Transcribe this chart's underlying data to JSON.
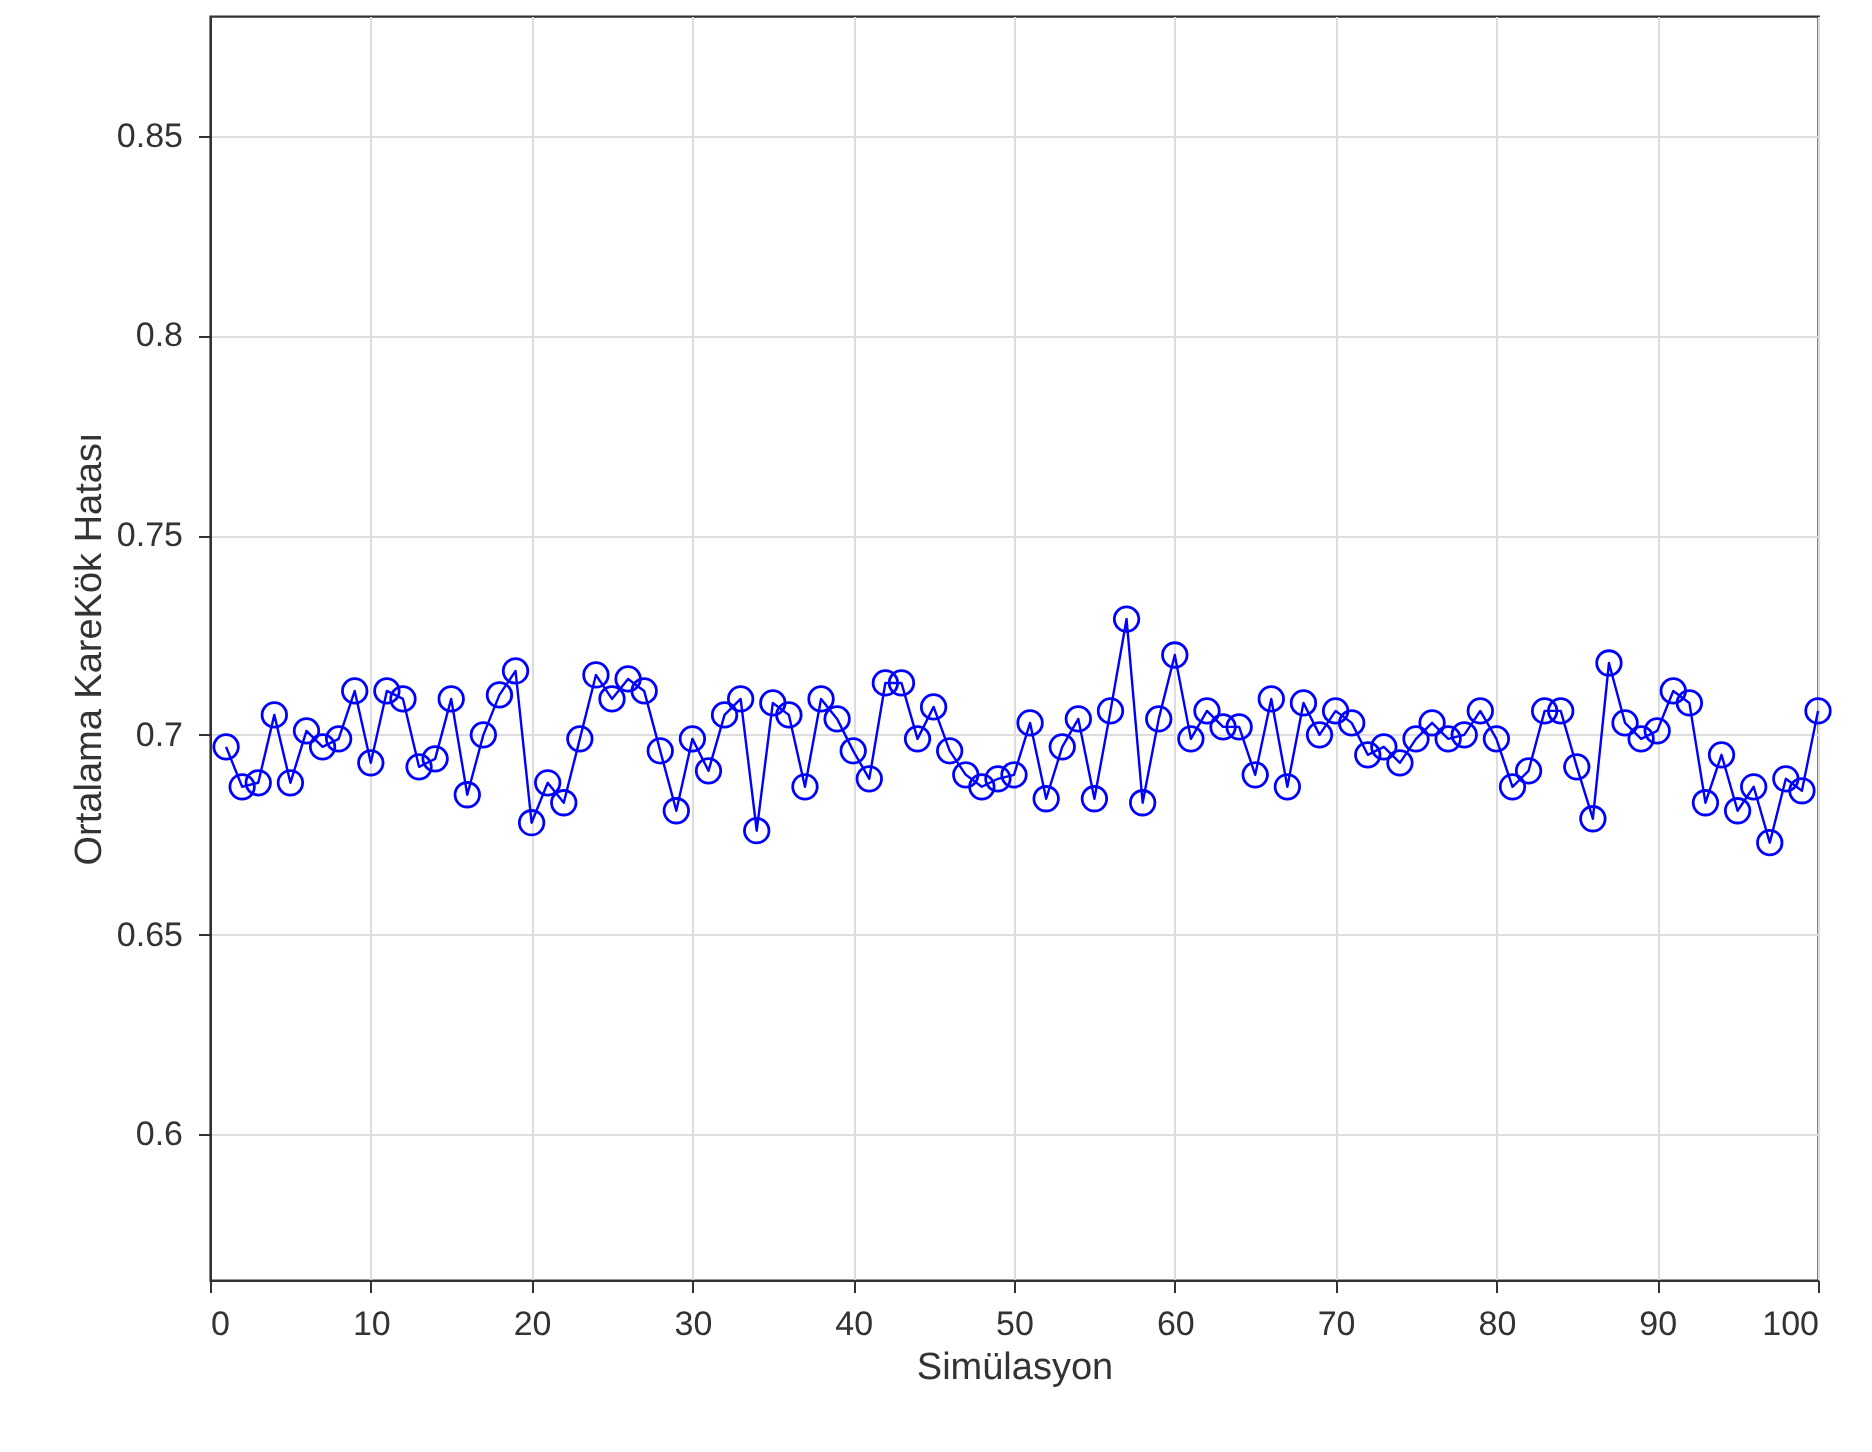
{
  "chart_data": {
    "type": "line",
    "xlabel": "Simülasyon",
    "ylabel": "Ortalama KareKök Hatası",
    "x": [
      1,
      2,
      3,
      4,
      5,
      6,
      7,
      8,
      9,
      10,
      11,
      12,
      13,
      14,
      15,
      16,
      17,
      18,
      19,
      20,
      21,
      22,
      23,
      24,
      25,
      26,
      27,
      28,
      29,
      30,
      31,
      32,
      33,
      34,
      35,
      36,
      37,
      38,
      39,
      40,
      41,
      42,
      43,
      44,
      45,
      46,
      47,
      48,
      49,
      50,
      51,
      52,
      53,
      54,
      55,
      56,
      57,
      58,
      59,
      60,
      61,
      62,
      63,
      64,
      65,
      66,
      67,
      68,
      69,
      70,
      71,
      72,
      73,
      74,
      75,
      76,
      77,
      78,
      79,
      80,
      81,
      82,
      83,
      84,
      85,
      86,
      87,
      88,
      89,
      90,
      91,
      92,
      93,
      94,
      95,
      96,
      97,
      98,
      99,
      100
    ],
    "series": [
      {
        "color": "#0000ff",
        "values": [
          0.697,
          0.687,
          0.688,
          0.705,
          0.688,
          0.701,
          0.697,
          0.699,
          0.711,
          0.693,
          0.711,
          0.709,
          0.692,
          0.694,
          0.709,
          0.685,
          0.7,
          0.71,
          0.716,
          0.678,
          0.688,
          0.683,
          0.699,
          0.715,
          0.709,
          0.714,
          0.711,
          0.696,
          0.681,
          0.699,
          0.691,
          0.705,
          0.709,
          0.676,
          0.708,
          0.705,
          0.687,
          0.709,
          0.704,
          0.696,
          0.689,
          0.713,
          0.713,
          0.699,
          0.707,
          0.696,
          0.69,
          0.687,
          0.689,
          0.69,
          0.703,
          0.684,
          0.697,
          0.704,
          0.684,
          0.706,
          0.729,
          0.683,
          0.704,
          0.72,
          0.699,
          0.706,
          0.702,
          0.702,
          0.69,
          0.709,
          0.687,
          0.708,
          0.7,
          0.706,
          0.703,
          0.695,
          0.697,
          0.693,
          0.699,
          0.703,
          0.699,
          0.7,
          0.706,
          0.699,
          0.687,
          0.691,
          0.706,
          0.706,
          0.692,
          0.679,
          0.718,
          0.703,
          0.699,
          0.701,
          0.711,
          0.708,
          0.683,
          0.695,
          0.681,
          0.687,
          0.673,
          0.689,
          0.686,
          0.706
        ]
      }
    ],
    "xlim": [
      0,
      100
    ],
    "xticks": [
      0,
      10,
      20,
      30,
      40,
      50,
      60,
      70,
      80,
      90,
      100
    ],
    "ylim": [
      0.5635,
      0.88
    ],
    "yticks": [
      0.6,
      0.65,
      0.7,
      0.75,
      0.8,
      0.85
    ],
    "grid": true,
    "marker": "circle",
    "line_style": "solid"
  }
}
